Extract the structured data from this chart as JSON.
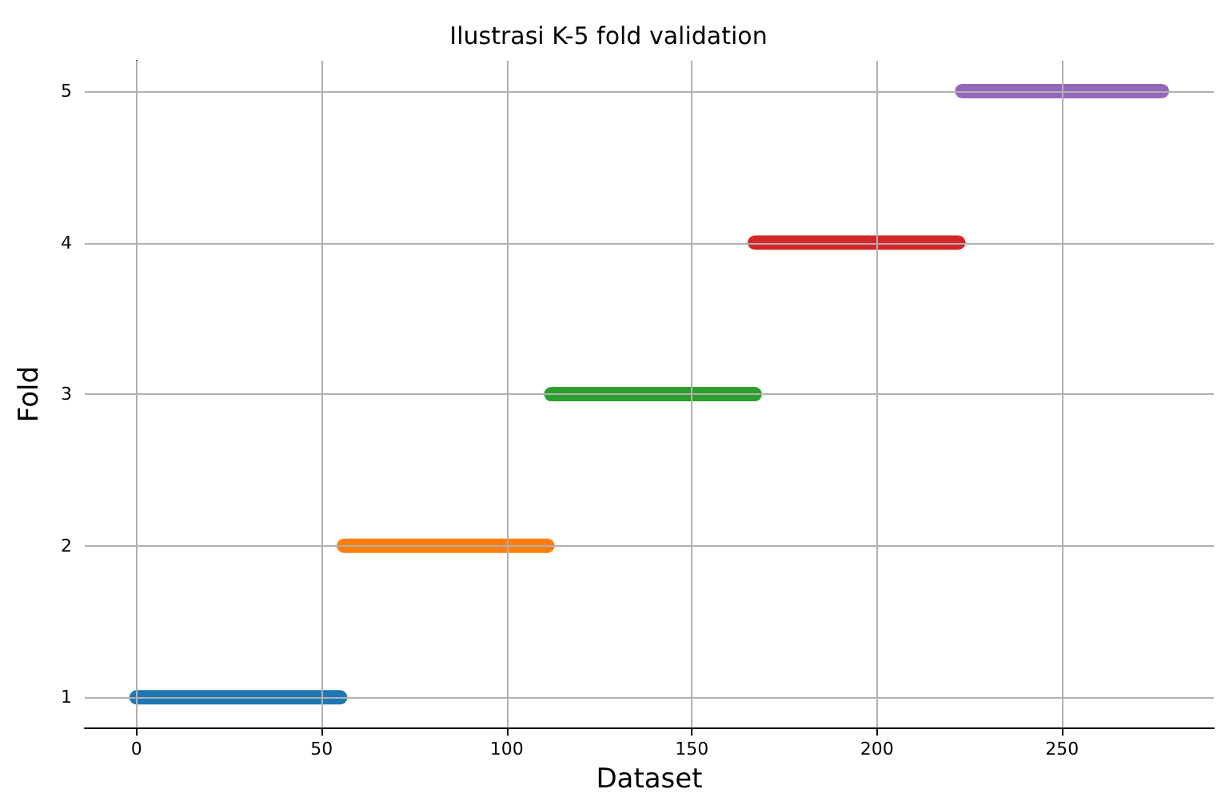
{
  "chart_data": {
    "type": "line",
    "title": "Ilustrasi K-5 fold validation",
    "xlabel": "Dataset",
    "ylabel": "Fold",
    "xlim": [
      -14,
      291
    ],
    "xticks": [
      0,
      50,
      100,
      150,
      200,
      250
    ],
    "ylim": [
      0.8,
      5.2
    ],
    "yticks": [
      1,
      2,
      3,
      4,
      5
    ],
    "grid": true,
    "series": [
      {
        "color": "#1f77b4",
        "x": [
          0,
          55
        ],
        "values": [
          1,
          1
        ]
      },
      {
        "color": "#ff7f0e",
        "x": [
          56,
          111
        ],
        "values": [
          2,
          2
        ]
      },
      {
        "color": "#2ca02c",
        "x": [
          112,
          167
        ],
        "values": [
          3,
          3
        ]
      },
      {
        "color": "#d62728",
        "x": [
          167,
          222
        ],
        "values": [
          4,
          4
        ]
      },
      {
        "color": "#9467bd",
        "x": [
          223,
          277
        ],
        "values": [
          5,
          5
        ]
      }
    ]
  }
}
